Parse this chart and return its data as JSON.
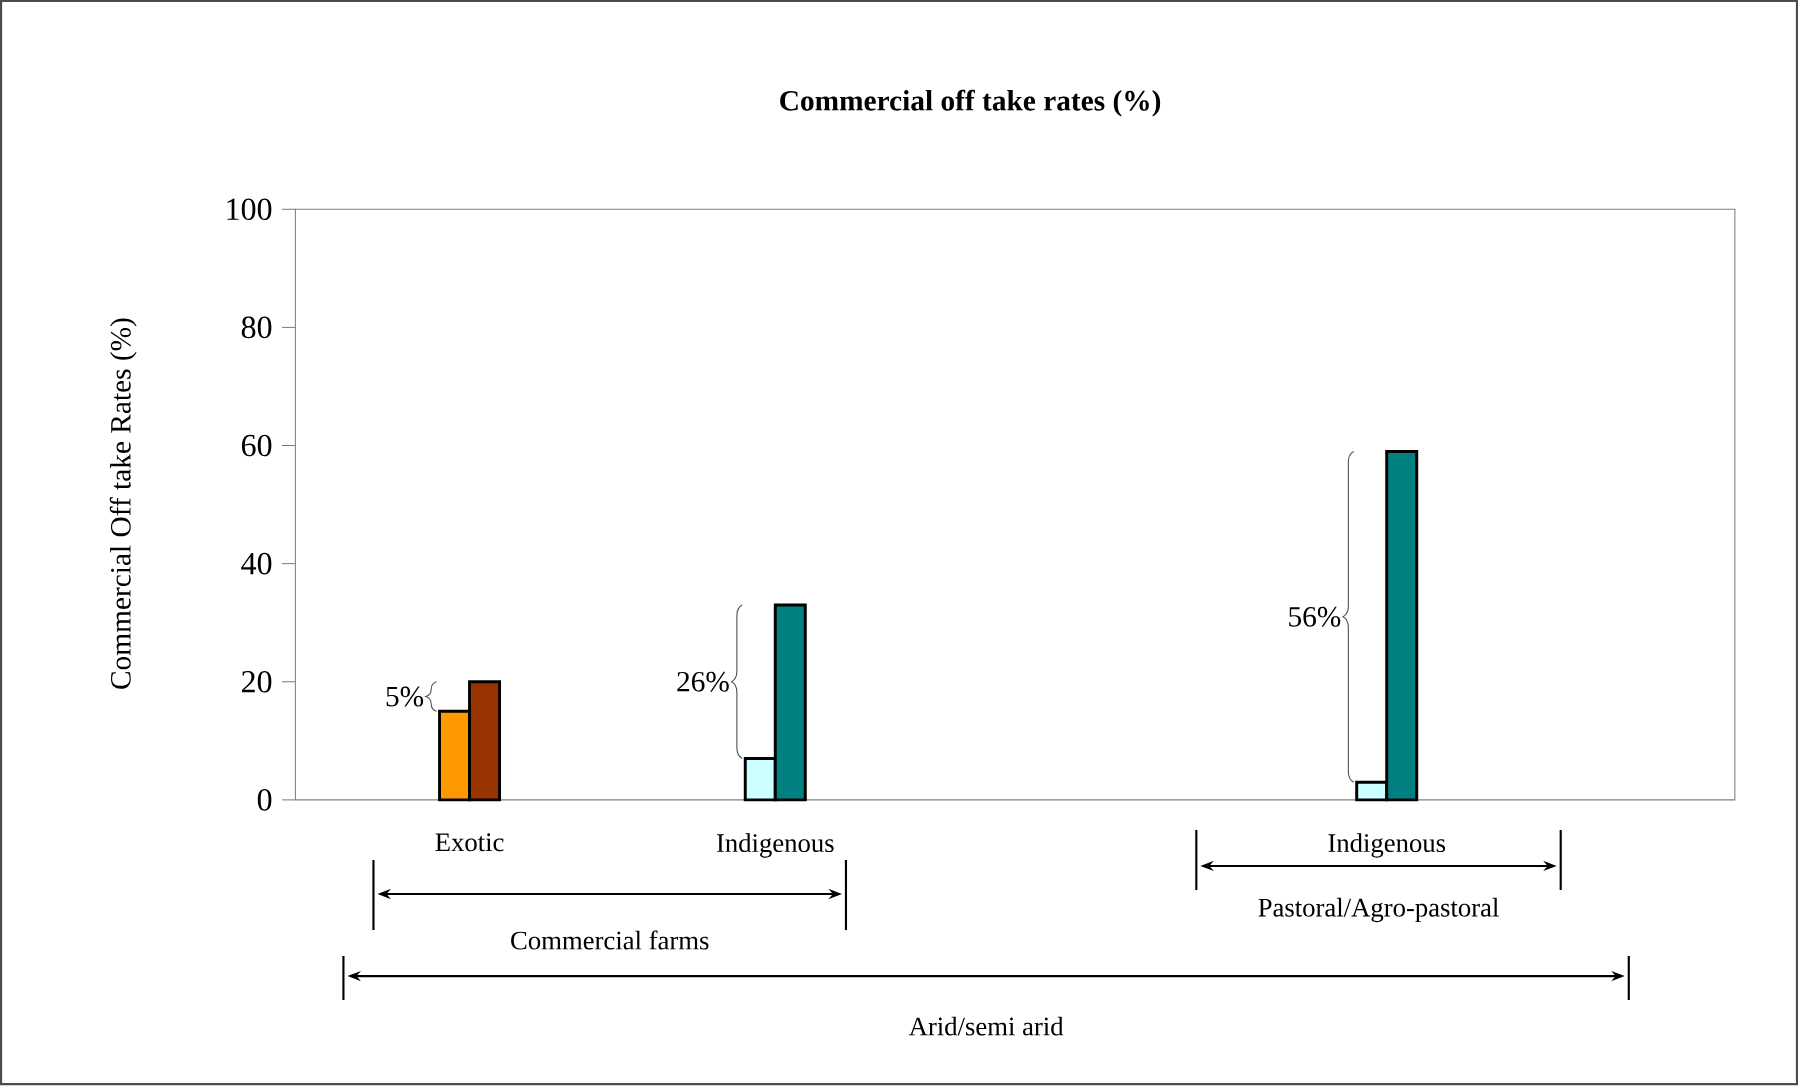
{
  "chart_data": {
    "type": "bar",
    "title": "Commercial off take rates (%)",
    "ylabel": "Commercial Off take Rates (%)",
    "categories": [
      "Exotic",
      "Indigenous",
      null,
      "Indigenous"
    ],
    "series": [
      {
        "colors": [
          "#ff9900",
          "#ccffff",
          "#ccffff",
          "#ccffff"
        ],
        "values": [
          15,
          7,
          null,
          3
        ]
      },
      {
        "colors": [
          "#993300",
          "#008080",
          "#008080",
          "#008080"
        ],
        "values": [
          20,
          33,
          null,
          59
        ]
      }
    ],
    "ylim": [
      0,
      100
    ],
    "yticks": [
      0,
      20,
      40,
      60,
      80,
      100
    ],
    "annotations": [
      "5%",
      "26%",
      "56%",
      "Commercial farms",
      "Pastoral/Agro-pastoral",
      "Arid/semi arid"
    ]
  }
}
